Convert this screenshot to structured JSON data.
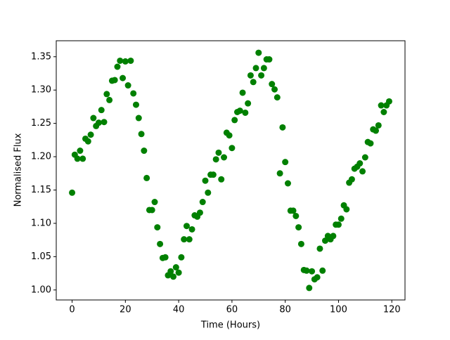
{
  "chart_data": {
    "type": "scatter",
    "color": "#008000",
    "xlabel": "Time (Hours)",
    "ylabel": "Normalised Flux",
    "xlim": [
      -5.95,
      124.95
    ],
    "ylim": [
      0.985,
      1.374
    ],
    "xticks": [
      0,
      20,
      40,
      60,
      80,
      100,
      120
    ],
    "yticks": [
      {
        "value": 1,
        "label": "1.00"
      },
      1.05,
      {
        "value": 1.1,
        "label": "1.10"
      },
      1.15,
      {
        "value": 1.2,
        "label": "1.20"
      },
      1.25,
      {
        "value": 1.3,
        "label": "1.30"
      },
      1.35
    ],
    "x": [
      0,
      1,
      2,
      3,
      4,
      5,
      6,
      7,
      8,
      9,
      10,
      11,
      12,
      13,
      14,
      15,
      16,
      17,
      18,
      19,
      20,
      21,
      22,
      23,
      24,
      25,
      26,
      27,
      28,
      29,
      30,
      31,
      32,
      33,
      34,
      35,
      36,
      37,
      38,
      39,
      40,
      41,
      42,
      43,
      44,
      45,
      46,
      47,
      48,
      49,
      50,
      51,
      52,
      53,
      54,
      55,
      56,
      57,
      58,
      59,
      60,
      61,
      62,
      63,
      64,
      65,
      66,
      67,
      68,
      69,
      70,
      71,
      72,
      73,
      74,
      75,
      76,
      77,
      78,
      79,
      80,
      81,
      82,
      83,
      84,
      85,
      86,
      87,
      88,
      89,
      90,
      91,
      92,
      93,
      94,
      95,
      96,
      97,
      98,
      99,
      100,
      101,
      102,
      103,
      104,
      105,
      106,
      107,
      108,
      109,
      110,
      111,
      112,
      113,
      114,
      115,
      116,
      117,
      118,
      119
    ],
    "values": [
      1.146,
      1.203,
      1.197,
      1.209,
      1.197,
      1.227,
      1.223,
      1.233,
      1.258,
      1.246,
      1.251,
      1.27,
      1.252,
      1.294,
      1.285,
      1.314,
      1.315,
      1.335,
      1.344,
      1.318,
      1.343,
      1.307,
      1.344,
      1.295,
      1.278,
      1.258,
      1.234,
      1.209,
      1.168,
      1.12,
      1.12,
      1.132,
      1.094,
      1.069,
      1.048,
      1.049,
      1.022,
      1.028,
      1.02,
      1.034,
      1.026,
      1.049,
      1.076,
      1.096,
      1.076,
      1.091,
      1.112,
      1.11,
      1.116,
      1.132,
      1.164,
      1.146,
      1.173,
      1.173,
      1.196,
      1.206,
      1.166,
      1.199,
      1.236,
      1.232,
      1.213,
      1.255,
      1.267,
      1.269,
      1.296,
      1.266,
      1.28,
      1.322,
      1.312,
      1.333,
      1.356,
      1.322,
      1.333,
      1.346,
      1.346,
      1.309,
      1.301,
      1.289,
      1.175,
      1.244,
      1.192,
      1.16,
      1.119,
      1.119,
      1.111,
      1.094,
      1.069,
      1.03,
      1.029,
      1.003,
      1.028,
      1.016,
      1.019,
      1.062,
      1.029,
      1.074,
      1.081,
      1.076,
      1.081,
      1.098,
      1.098,
      1.107,
      1.127,
      1.121,
      1.161,
      1.166,
      1.182,
      1.185,
      1.19,
      1.178,
      1.199,
      1.222,
      1.22,
      1.241,
      1.239,
      1.247,
      1.277,
      1.267,
      1.277,
      1.283
    ]
  }
}
